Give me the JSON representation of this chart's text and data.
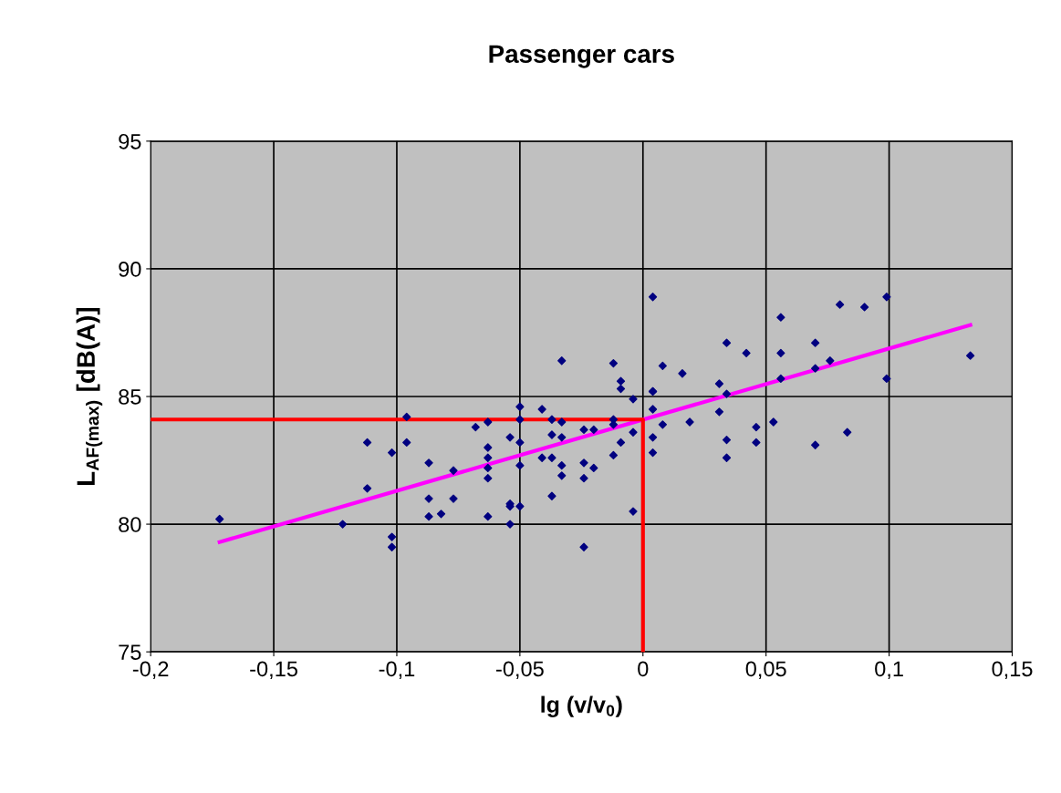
{
  "chart_data": {
    "type": "scatter",
    "title": "Passenger cars",
    "xlabel": "lg (v/v$_{0}$)",
    "ylabel": "L$_{AF(max)}$ [dB(A)]",
    "xlim": [
      -0.2,
      0.15
    ],
    "ylim": [
      75,
      95
    ],
    "xticks": [
      {
        "value": -0.2,
        "label": "-0,2"
      },
      {
        "value": -0.15,
        "label": "-0,15"
      },
      {
        "value": -0.1,
        "label": "-0,1"
      },
      {
        "value": -0.05,
        "label": "-0,05"
      },
      {
        "value": 0,
        "label": "0"
      },
      {
        "value": 0.05,
        "label": "0,05"
      },
      {
        "value": 0.1,
        "label": "0,1"
      },
      {
        "value": 0.15,
        "label": "0,15"
      }
    ],
    "yticks": [
      75,
      80,
      85,
      90,
      95
    ],
    "grid": true,
    "legend": false,
    "series": [
      {
        "color": "#000080",
        "marker": "diamond",
        "x": [
          -0.172,
          -0.122,
          -0.112,
          -0.112,
          -0.102,
          -0.102,
          -0.102,
          -0.096,
          -0.096,
          -0.087,
          -0.087,
          -0.087,
          -0.082,
          -0.077,
          -0.077,
          -0.068,
          -0.063,
          -0.063,
          -0.063,
          -0.063,
          -0.063,
          -0.063,
          -0.054,
          -0.054,
          -0.054,
          -0.054,
          -0.05,
          -0.05,
          -0.05,
          -0.05,
          -0.05,
          -0.041,
          -0.041,
          -0.037,
          -0.037,
          -0.037,
          -0.037,
          -0.033,
          -0.033,
          -0.033,
          -0.033,
          -0.033,
          -0.024,
          -0.024,
          -0.024,
          -0.024,
          -0.02,
          -0.02,
          -0.012,
          -0.012,
          -0.012,
          -0.012,
          -0.009,
          -0.009,
          -0.009,
          -0.004,
          -0.004,
          -0.004,
          0.004,
          0.004,
          0.004,
          0.004,
          0.004,
          0.004,
          0.008,
          0.008,
          0.016,
          0.019,
          0.031,
          0.031,
          0.034,
          0.034,
          0.034,
          0.034,
          0.042,
          0.046,
          0.046,
          0.053,
          0.056,
          0.056,
          0.056,
          0.07,
          0.07,
          0.07,
          0.076,
          0.08,
          0.083,
          0.09,
          0.099,
          0.099,
          0.133
        ],
        "values": [
          80.2,
          80.0,
          83.2,
          81.4,
          82.8,
          79.5,
          79.1,
          84.2,
          83.2,
          82.4,
          81.0,
          80.3,
          80.4,
          82.1,
          81.0,
          83.8,
          84.0,
          83.0,
          82.6,
          82.2,
          81.8,
          80.3,
          83.4,
          80.8,
          80.7,
          80.0,
          84.6,
          84.1,
          83.2,
          82.3,
          80.7,
          84.5,
          82.6,
          84.1,
          83.5,
          82.6,
          81.1,
          86.4,
          84.0,
          83.4,
          82.3,
          81.9,
          83.7,
          82.4,
          81.8,
          79.1,
          83.7,
          82.2,
          86.3,
          84.1,
          83.9,
          82.7,
          85.6,
          85.3,
          83.2,
          84.9,
          83.6,
          80.5,
          88.9,
          85.2,
          84.5,
          83.4,
          82.8,
          85.2,
          86.2,
          83.9,
          85.9,
          84.0,
          85.5,
          84.4,
          87.1,
          85.1,
          83.3,
          82.6,
          86.7,
          83.8,
          83.2,
          84.0,
          88.1,
          86.7,
          85.7,
          87.1,
          86.1,
          83.1,
          86.4,
          88.6,
          83.6,
          88.5,
          88.9,
          85.7,
          86.6
        ]
      },
      {
        "type": "line",
        "color": "#ff00ff",
        "marker": "none",
        "x": [
          -0.172,
          0.133
        ],
        "values": [
          79.3,
          87.8
        ]
      },
      {
        "type": "line",
        "color": "#ff0000",
        "marker": "none",
        "x": [
          -0.2,
          0,
          0
        ],
        "values": [
          84.1,
          84.1,
          75
        ]
      }
    ]
  }
}
